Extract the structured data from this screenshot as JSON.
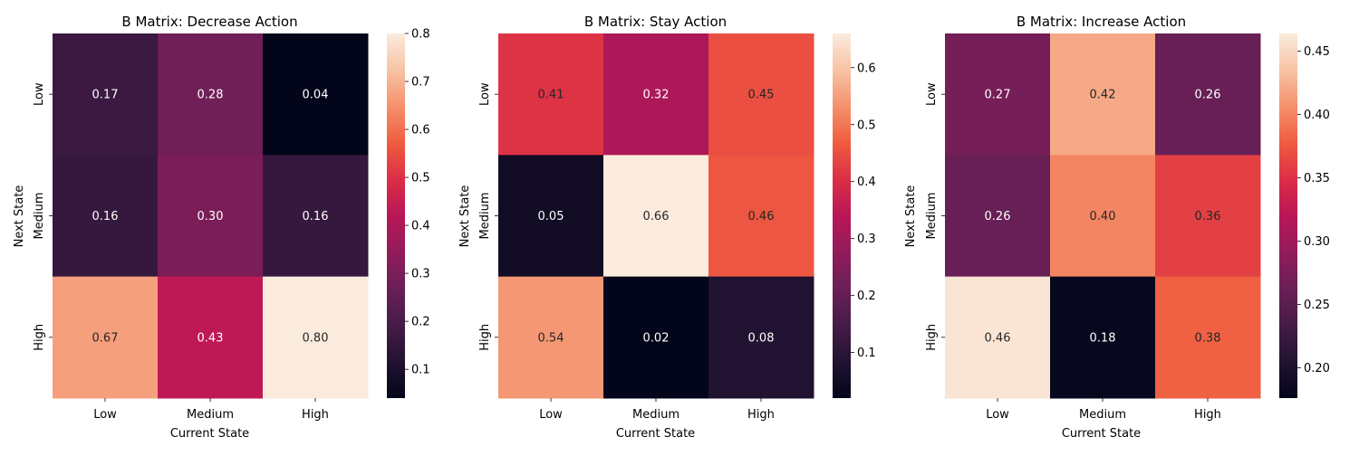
{
  "chart_data": [
    {
      "type": "heatmap",
      "title": "B Matrix: Decrease Action",
      "xlabel": "Current State",
      "ylabel": "Next State",
      "x_categories": [
        "Low",
        "Medium",
        "High"
      ],
      "y_categories": [
        "Low",
        "Medium",
        "High"
      ],
      "values": [
        [
          0.17,
          0.28,
          0.04
        ],
        [
          0.16,
          0.3,
          0.16
        ],
        [
          0.67,
          0.43,
          0.8
        ]
      ],
      "labels": [
        [
          "0.17",
          "0.28",
          "0.04"
        ],
        [
          "0.16",
          "0.30",
          "0.16"
        ],
        [
          "0.67",
          "0.43",
          "0.80"
        ]
      ],
      "colorbar_ticks": [
        0.1,
        0.2,
        0.3,
        0.4,
        0.5,
        0.6,
        0.7,
        0.8
      ],
      "colorbar_tick_labels": [
        "0.1",
        "0.2",
        "0.3",
        "0.4",
        "0.5",
        "0.6",
        "0.7",
        "0.8"
      ],
      "vmin": 0.04,
      "vmax": 0.8,
      "colormap": "rocket",
      "grid": false
    },
    {
      "type": "heatmap",
      "title": "B Matrix: Stay Action",
      "xlabel": "Current State",
      "ylabel": "Next State",
      "x_categories": [
        "Low",
        "Medium",
        "High"
      ],
      "y_categories": [
        "Low",
        "Medium",
        "High"
      ],
      "values": [
        [
          0.41,
          0.32,
          0.45
        ],
        [
          0.05,
          0.66,
          0.46
        ],
        [
          0.54,
          0.02,
          0.08
        ]
      ],
      "labels": [
        [
          "0.41",
          "0.32",
          "0.45"
        ],
        [
          "0.05",
          "0.66",
          "0.46"
        ],
        [
          "0.54",
          "0.02",
          "0.08"
        ]
      ],
      "colorbar_ticks": [
        0.1,
        0.2,
        0.3,
        0.4,
        0.5,
        0.6
      ],
      "colorbar_tick_labels": [
        "0.1",
        "0.2",
        "0.3",
        "0.4",
        "0.5",
        "0.6"
      ],
      "vmin": 0.02,
      "vmax": 0.66,
      "colormap": "rocket",
      "grid": false
    },
    {
      "type": "heatmap",
      "title": "B Matrix: Increase Action",
      "xlabel": "Current State",
      "ylabel": "Next State",
      "x_categories": [
        "Low",
        "Medium",
        "High"
      ],
      "y_categories": [
        "Low",
        "Medium",
        "High"
      ],
      "values": [
        [
          0.27,
          0.42,
          0.26
        ],
        [
          0.26,
          0.4,
          0.36
        ],
        [
          0.46,
          0.18,
          0.38
        ]
      ],
      "labels": [
        [
          "0.27",
          "0.42",
          "0.26"
        ],
        [
          "0.26",
          "0.40",
          "0.36"
        ],
        [
          "0.46",
          "0.18",
          "0.38"
        ]
      ],
      "colorbar_ticks": [
        0.2,
        0.25,
        0.3,
        0.35,
        0.4,
        0.45
      ],
      "colorbar_tick_labels": [
        "0.20",
        "0.25",
        "0.30",
        "0.35",
        "0.40",
        "0.45"
      ],
      "vmin": 0.176,
      "vmax": 0.464,
      "colormap": "rocket",
      "grid": false
    }
  ]
}
